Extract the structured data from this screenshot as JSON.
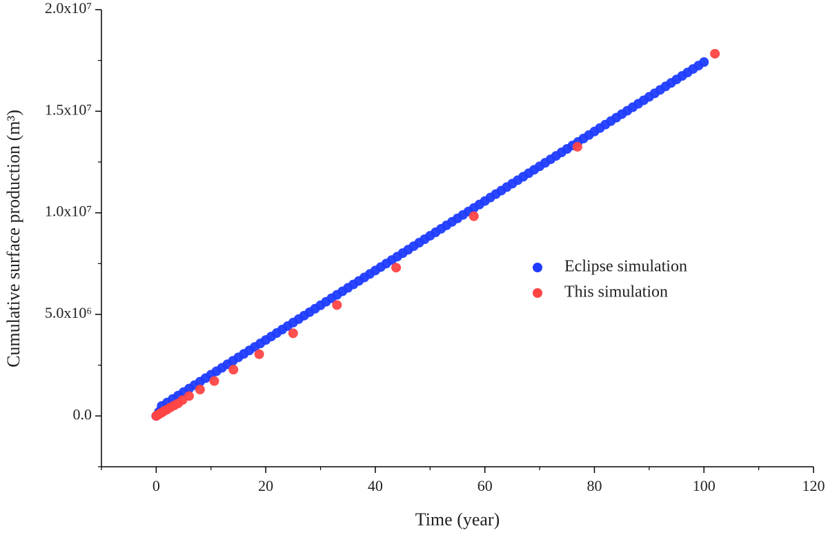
{
  "chart_data": {
    "type": "scatter",
    "xlabel": "Time (year)",
    "ylabel": "Cumulative surface production (m³)",
    "xlim": [
      -10,
      120
    ],
    "xticks": [
      0,
      20,
      40,
      60,
      80,
      100,
      120
    ],
    "xminorticks": [
      -10,
      10,
      30,
      50,
      70,
      90,
      110
    ],
    "ylim": [
      -2500000,
      20000000
    ],
    "yticks": [
      {
        "value": 0,
        "label": "0.0"
      },
      {
        "value": 5000000,
        "label": "5.0x10⁶"
      },
      {
        "value": 10000000,
        "label": "1.0x10⁷"
      },
      {
        "value": 15000000,
        "label": "1.5x10⁷"
      },
      {
        "value": 20000000,
        "label": "2.0x10⁷"
      }
    ],
    "yminorticks": [
      -2500000,
      2500000,
      7500000,
      12500000,
      17500000
    ],
    "legend": "right",
    "series": [
      {
        "name": "Eclipse simulation",
        "color": "#1f3cff",
        "x": [
          0,
          0.5,
          1,
          2,
          3,
          4,
          5,
          6,
          7,
          8,
          9,
          10,
          11,
          12,
          13,
          14,
          15,
          16,
          17,
          18,
          19,
          20,
          21,
          22,
          23,
          24,
          25,
          26,
          27,
          28,
          29,
          30,
          31,
          32,
          33,
          34,
          35,
          36,
          37,
          38,
          39,
          40,
          41,
          42,
          43,
          44,
          45,
          46,
          47,
          48,
          49,
          50,
          51,
          52,
          53,
          54,
          55,
          56,
          57,
          58,
          59,
          60,
          61,
          62,
          63,
          64,
          65,
          66,
          67,
          68,
          69,
          70,
          71,
          72,
          73,
          74,
          75,
          76,
          77,
          78,
          79,
          80,
          81,
          82,
          83,
          84,
          85,
          86,
          87,
          88,
          89,
          90,
          91,
          92,
          93,
          94,
          95,
          96,
          97,
          98,
          99,
          100
        ],
        "values": [
          0,
          200000,
          491000,
          662000,
          833000,
          1004000,
          1175000,
          1346000,
          1517000,
          1688000,
          1859000,
          2030000,
          2201000,
          2372000,
          2543000,
          2714000,
          2885000,
          3056000,
          3227000,
          3398000,
          3569000,
          3740000,
          3911000,
          4082000,
          4253000,
          4424000,
          4595000,
          4766000,
          4937000,
          5108000,
          5279000,
          5450000,
          5621000,
          5792000,
          5963000,
          6134000,
          6305000,
          6476000,
          6647000,
          6818000,
          6989000,
          7160000,
          7331000,
          7502000,
          7673000,
          7844000,
          8015000,
          8186000,
          8357000,
          8528000,
          8699000,
          8870000,
          9041000,
          9212000,
          9383000,
          9554000,
          9725000,
          9896000,
          10067000,
          10238000,
          10409000,
          10580000,
          10751000,
          10922000,
          11093000,
          11264000,
          11435000,
          11606000,
          11777000,
          11948000,
          12119000,
          12290000,
          12461000,
          12632000,
          12803000,
          12974000,
          13145000,
          13316000,
          13487000,
          13658000,
          13829000,
          14000000,
          14171000,
          14342000,
          14513000,
          14684000,
          14855000,
          15026000,
          15197000,
          15368000,
          15539000,
          15710000,
          15881000,
          16052000,
          16223000,
          16394000,
          16565000,
          16736000,
          16907000,
          17078000,
          17249000,
          17420000
        ]
      },
      {
        "name": "This simulation",
        "color": "#ff4444",
        "x": [
          0,
          0.3,
          0.7,
          1.1,
          1.5,
          2,
          2.6,
          3.3,
          4,
          4.8,
          6,
          8,
          10.6,
          14.1,
          18.8,
          25,
          33,
          43.8,
          58,
          76.9,
          102
        ],
        "values": [
          0,
          50000,
          120000,
          180000,
          250000,
          320000,
          420000,
          520000,
          620000,
          780000,
          980000,
          1300000,
          1720000,
          2280000,
          3040000,
          4070000,
          5460000,
          7300000,
          9830000,
          13250000,
          17830000
        ]
      }
    ]
  }
}
